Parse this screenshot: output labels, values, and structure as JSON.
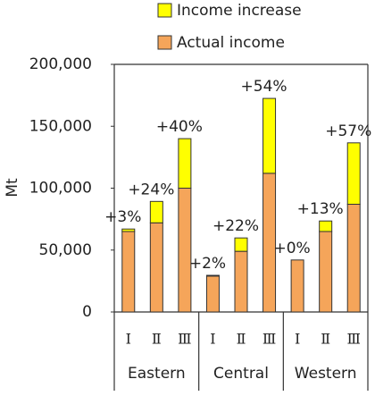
{
  "chart_data": {
    "type": "stacked_bar",
    "y_label": "Mt",
    "groups": [
      {
        "name": "Eastern",
        "categories": [
          "Ⅰ",
          "Ⅱ",
          "Ⅲ"
        ]
      },
      {
        "name": "Central",
        "categories": [
          "Ⅰ",
          "Ⅱ",
          "Ⅲ"
        ]
      },
      {
        "name": "Western",
        "categories": [
          "Ⅰ",
          "Ⅱ",
          "Ⅲ"
        ]
      }
    ],
    "series": [
      {
        "name": "Actual income",
        "color": "#f5a55a",
        "values": [
          65000,
          72000,
          100000,
          29000,
          49000,
          112000,
          42000,
          65000,
          87000
        ]
      },
      {
        "name": "Income increase",
        "color": "#ffff00",
        "values": [
          2000,
          17300,
          40000,
          600,
          10800,
          60500,
          0,
          8500,
          49600
        ]
      }
    ],
    "increase_labels": [
      "+3%",
      "+24%",
      "+40%",
      "+2%",
      "+22%",
      "+54%",
      "+0%",
      "+13%",
      "+57%"
    ],
    "ylim": [
      0,
      200000
    ],
    "yticks": [
      {
        "value": 0,
        "label": "0"
      },
      {
        "value": 50000,
        "label": "50,000"
      },
      {
        "value": 100000,
        "label": "100,000"
      },
      {
        "value": 150000,
        "label": "150,000"
      },
      {
        "value": 200000,
        "label": "200,000"
      }
    ]
  }
}
